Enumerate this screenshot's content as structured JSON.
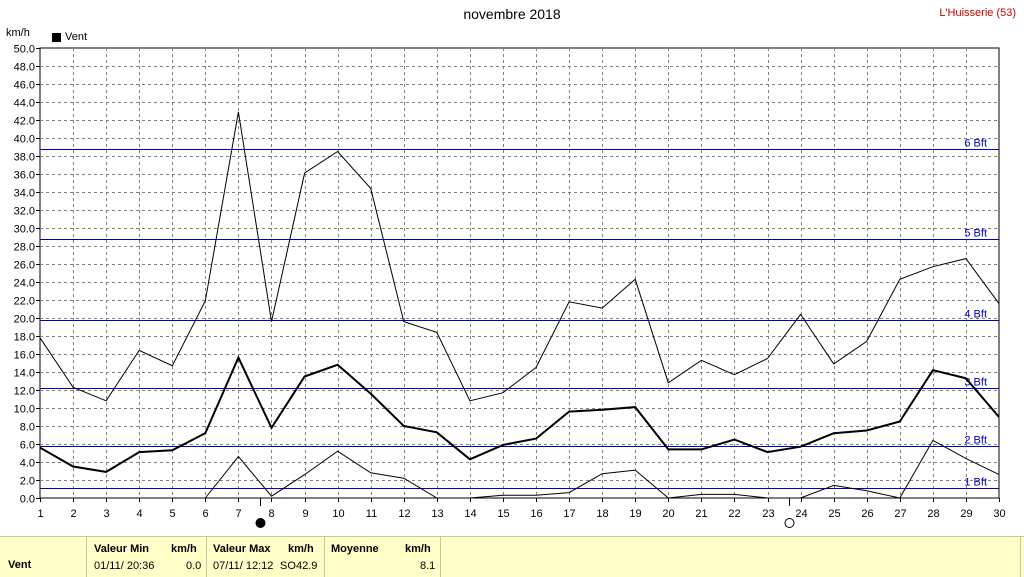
{
  "title": "novembre 2018",
  "station": "L'Huisserie (53)",
  "unit": "km/h",
  "legend": {
    "label": "Vent",
    "color": "#000000"
  },
  "chart_data": {
    "type": "line",
    "title": "novembre 2018",
    "ylabel": "km/h",
    "xlabel": "",
    "ylim": [
      0,
      50
    ],
    "y_tick_step": 2,
    "x": [
      1,
      2,
      3,
      4,
      5,
      6,
      7,
      8,
      9,
      10,
      11,
      12,
      13,
      14,
      15,
      16,
      17,
      18,
      19,
      20,
      21,
      22,
      23,
      24,
      25,
      26,
      27,
      28,
      29,
      30
    ],
    "grid": true,
    "series": [
      {
        "role": "max",
        "values": [
          17.8,
          12.3,
          10.8,
          16.4,
          14.7,
          21.9,
          42.9,
          19.6,
          36.1,
          38.5,
          34.4,
          19.6,
          18.4,
          10.8,
          11.7,
          14.5,
          21.8,
          21.1,
          24.3,
          12.8,
          15.3,
          13.7,
          15.5,
          20.4,
          14.9,
          17.4,
          24.3,
          25.7,
          26.6,
          21.6
        ]
      },
      {
        "role": "avg",
        "values": [
          5.6,
          3.5,
          2.9,
          5.1,
          5.3,
          7.2,
          15.6,
          7.8,
          13.5,
          14.8,
          11.6,
          8.0,
          7.3,
          4.3,
          5.9,
          6.6,
          9.6,
          9.8,
          10.1,
          5.4,
          5.4,
          6.5,
          5.1,
          5.7,
          7.2,
          7.5,
          8.5,
          14.2,
          13.3,
          9.0
        ]
      },
      {
        "role": "min",
        "values": [
          null,
          null,
          null,
          null,
          null,
          0.0,
          4.6,
          0.2,
          2.6,
          5.2,
          2.8,
          2.2,
          0.0,
          0.0,
          0.3,
          0.3,
          0.6,
          2.7,
          3.1,
          0.0,
          0.4,
          0.4,
          0.0,
          0.0,
          1.4,
          0.8,
          0.0,
          6.4,
          4.4,
          2.6
        ]
      }
    ],
    "beaufort_lines": [
      {
        "label": "1 Bft",
        "value": 1.1
      },
      {
        "label": "2 Bft",
        "value": 5.8
      },
      {
        "label": "3 Bft",
        "value": 12.2
      },
      {
        "label": "4 Bft",
        "value": 19.8
      },
      {
        "label": "5 Bft",
        "value": 28.8
      },
      {
        "label": "6 Bft",
        "value": 38.8
      }
    ],
    "moon_phases": [
      {
        "day": 7,
        "phase": "new"
      },
      {
        "day": 23,
        "phase": "full"
      }
    ]
  },
  "stats": {
    "row_label": "Vent",
    "min": {
      "header": "Valeur Min",
      "unit": "km/h",
      "date": "01/11/ 20:36",
      "value": "0.0"
    },
    "max": {
      "header": "Valeur Max",
      "unit": "km/h",
      "date": "07/11/ 12:12",
      "dir": "SO",
      "value": "42.9"
    },
    "avg": {
      "header": "Moyenne",
      "unit": "km/h",
      "value": "8.1"
    }
  }
}
